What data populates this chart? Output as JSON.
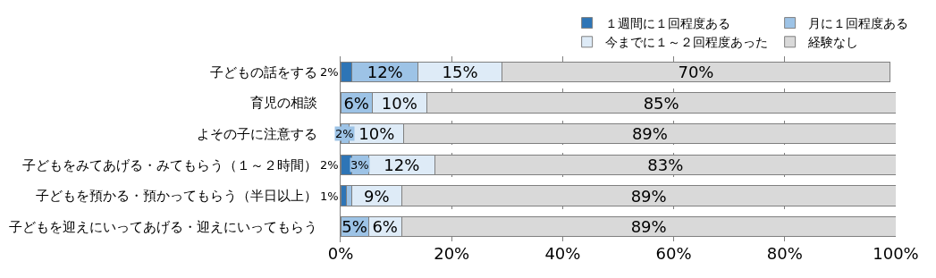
{
  "chart_data": {
    "type": "bar",
    "orientation": "horizontal",
    "stacked": true,
    "categories": [
      "子どもの話をする",
      "育児の相談",
      "よその子に注意する",
      "子どもをみてあげる・みてもらう（１～２時間）",
      "子どもを預かる・預かってもらう（半日以上）",
      "子どもを迎えにいってあげる・迎えにいってもらう"
    ],
    "series": [
      {
        "name": "１週間に１回程度ある",
        "color": "#2e75b6",
        "values": [
          2,
          0,
          0,
          2,
          1,
          0
        ],
        "value_labels": [
          "2%",
          null,
          null,
          "2%",
          "1%",
          null
        ]
      },
      {
        "name": "月に１回程度ある",
        "color": "#9dc3e6",
        "values": [
          12,
          5.7,
          1.6,
          3,
          1,
          5
        ],
        "value_labels": [
          "12%",
          "6%",
          "2%",
          "3%",
          null,
          "5%"
        ]
      },
      {
        "name": "今までに１～２回程度あった",
        "color": "#deebf7",
        "values": [
          15,
          9.8,
          9.8,
          12,
          9,
          6
        ],
        "value_labels": [
          "15%",
          "10%",
          "10%",
          "12%",
          "9%",
          "6%"
        ]
      },
      {
        "name": "経験なし",
        "color": "#d9d9d9",
        "values": [
          70,
          84.5,
          88.6,
          83,
          89,
          89
        ],
        "value_labels": [
          "70%",
          "85%",
          "89%",
          "83%",
          "89%",
          "89%"
        ]
      }
    ],
    "xlim": [
      0,
      100
    ],
    "xticks": [
      {
        "value": 0,
        "label": "0%"
      },
      {
        "value": 20,
        "label": "20%"
      },
      {
        "value": 40,
        "label": "40%"
      },
      {
        "value": 60,
        "label": "60%"
      },
      {
        "value": 80,
        "label": "80%"
      },
      {
        "value": 100,
        "label": "100%"
      }
    ],
    "grid": "x",
    "legend": "top"
  }
}
